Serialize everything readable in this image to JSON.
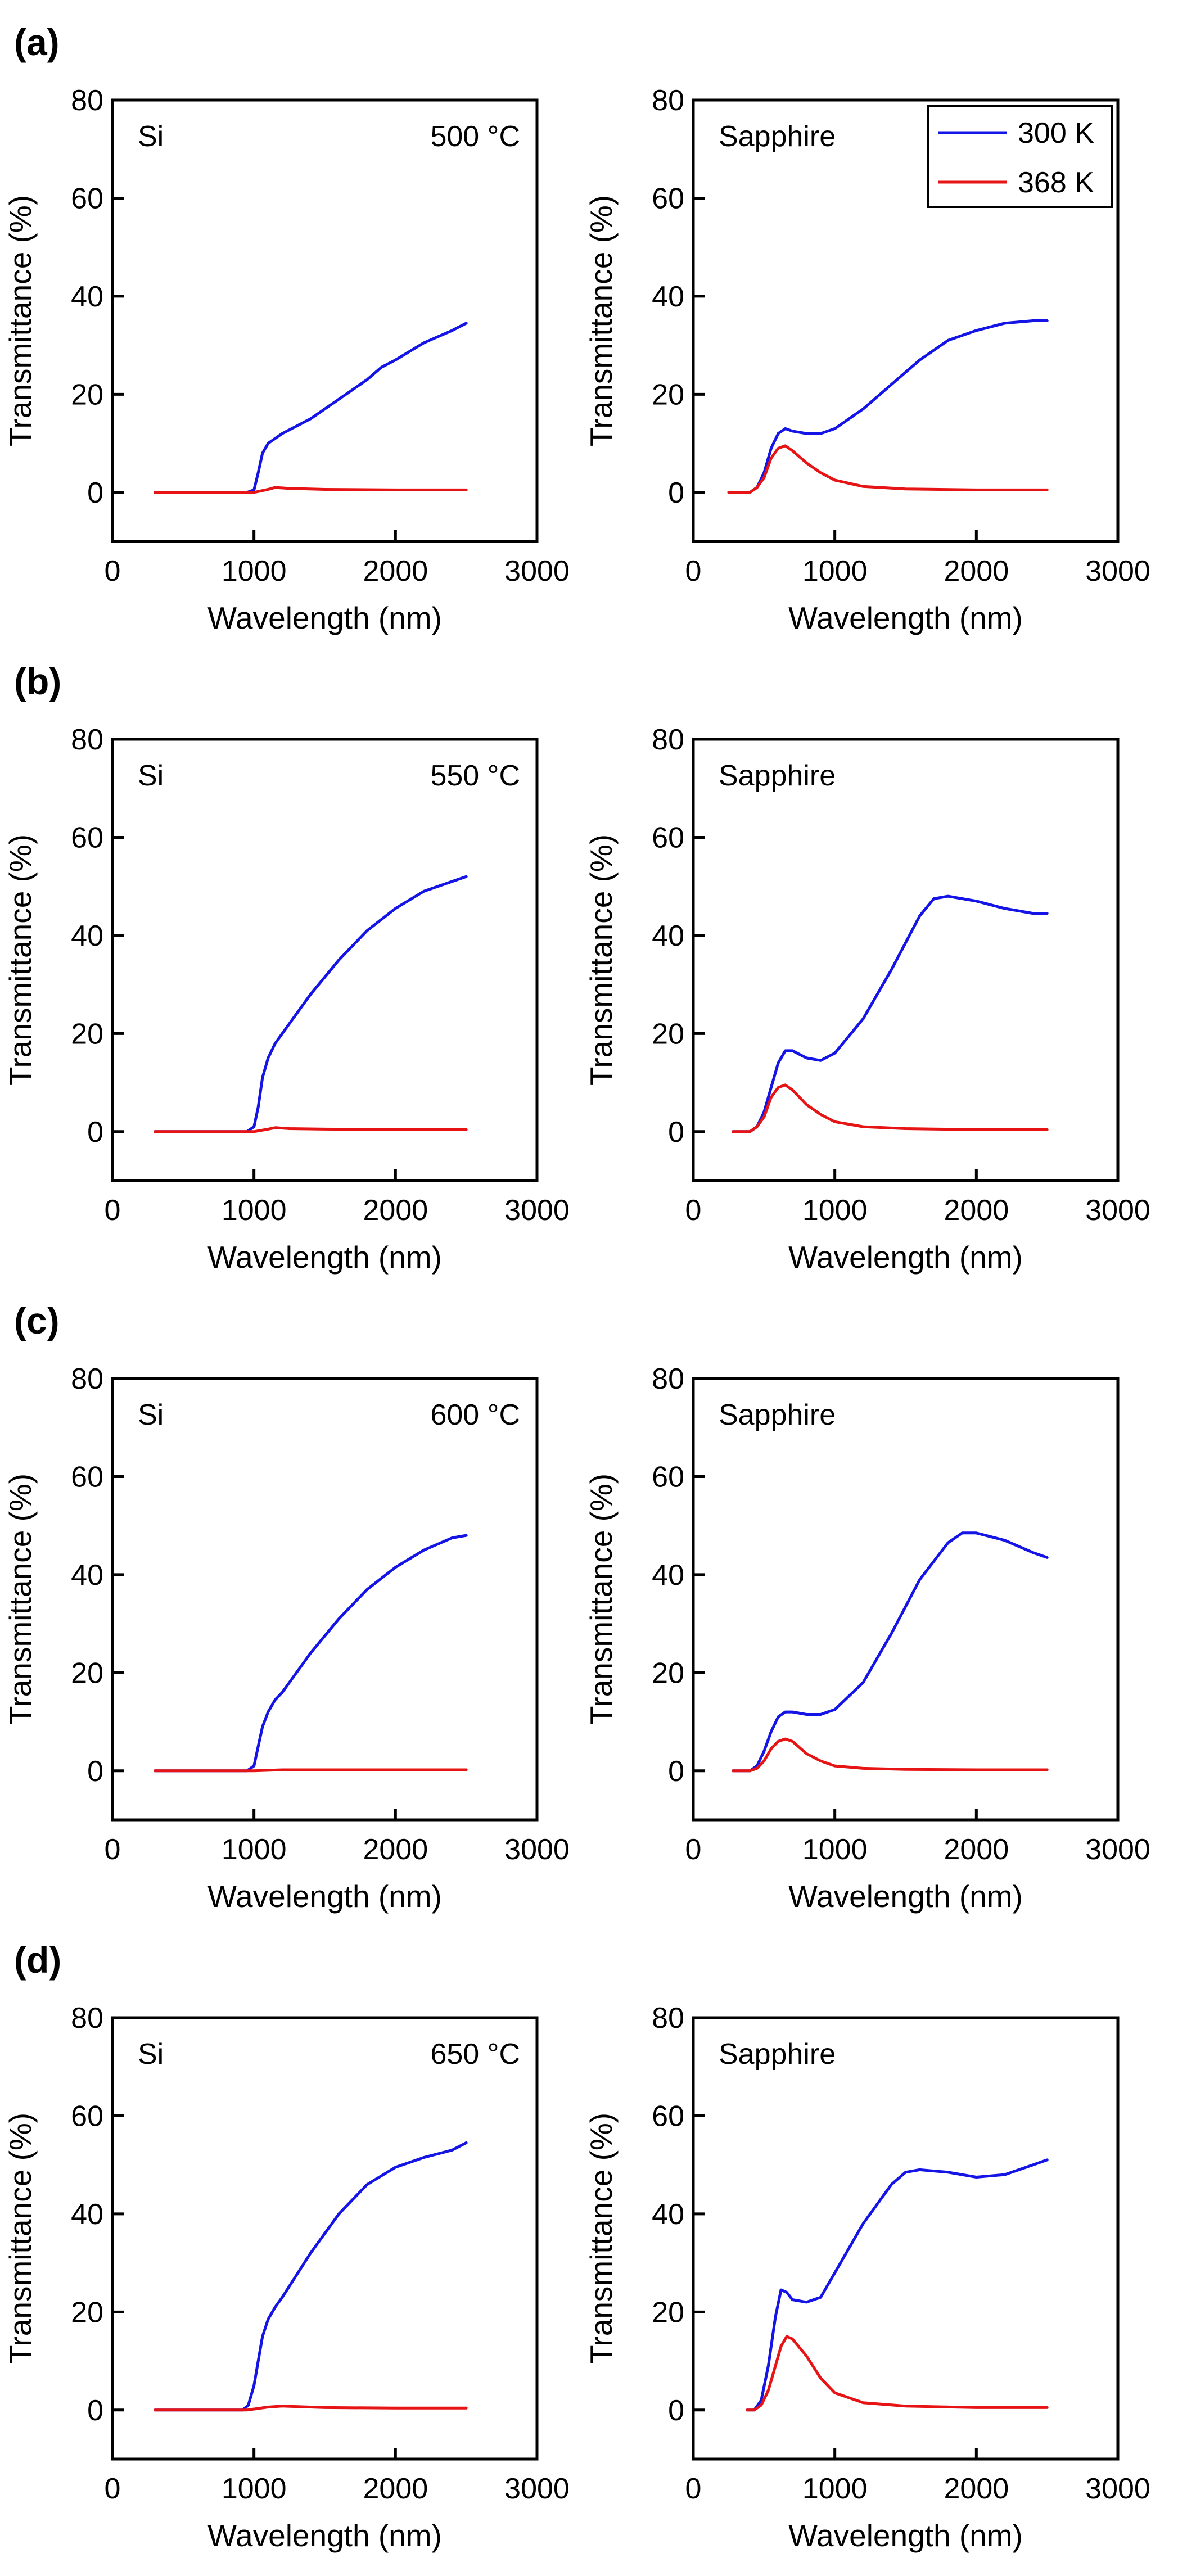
{
  "colors": {
    "blue": "#1414e6",
    "red": "#e61414",
    "axis": "#000000"
  },
  "legend": [
    {
      "label": "300 K",
      "color": "#1414e6"
    },
    {
      "label": "368 K",
      "color": "#e61414"
    }
  ],
  "chart_data": [
    {
      "type": "line",
      "panel_label": "(a)",
      "corner_label": "Si",
      "annotation": "500 °C",
      "xlabel": "Wavelength (nm)",
      "ylabel": "Transmittance (%)",
      "xlim": [
        0,
        3000
      ],
      "ylim": [
        -10,
        80
      ],
      "xticks": [
        0,
        1000,
        2000,
        3000
      ],
      "yticks": [
        0,
        20,
        40,
        60,
        80
      ],
      "series": [
        {
          "name": "300 K",
          "color": "#1414e6",
          "x": [
            300,
            950,
            1000,
            1030,
            1060,
            1100,
            1150,
            1200,
            1400,
            1600,
            1800,
            1900,
            2000,
            2200,
            2400,
            2500
          ],
          "y": [
            0,
            0,
            0.5,
            4,
            8,
            10,
            11,
            12,
            15,
            19,
            23,
            25.5,
            27,
            30.5,
            33,
            34.5
          ]
        },
        {
          "name": "368 K",
          "color": "#e61414",
          "x": [
            300,
            1000,
            1100,
            1150,
            1250,
            1500,
            2000,
            2500
          ],
          "y": [
            0,
            0,
            0.6,
            1,
            0.8,
            0.6,
            0.5,
            0.5
          ]
        }
      ]
    },
    {
      "type": "line",
      "corner_label": "Sapphire",
      "xlabel": "Wavelength (nm)",
      "ylabel": "Transmittance (%)",
      "xlim": [
        0,
        3000
      ],
      "ylim": [
        -10,
        80
      ],
      "xticks": [
        0,
        1000,
        2000,
        3000
      ],
      "yticks": [
        0,
        20,
        40,
        60,
        80
      ],
      "legend_position": "top-right",
      "series": [
        {
          "name": "300 K",
          "color": "#1414e6",
          "x": [
            250,
            400,
            450,
            500,
            550,
            600,
            650,
            700,
            800,
            900,
            1000,
            1200,
            1400,
            1600,
            1800,
            2000,
            2200,
            2400,
            2500
          ],
          "y": [
            0,
            0,
            1,
            4,
            9,
            12,
            13,
            12.5,
            12,
            12,
            13,
            17,
            22,
            27,
            31,
            33,
            34.5,
            35,
            35
          ]
        },
        {
          "name": "368 K",
          "color": "#e61414",
          "x": [
            250,
            400,
            450,
            500,
            550,
            600,
            650,
            700,
            800,
            900,
            1000,
            1200,
            1500,
            2000,
            2500
          ],
          "y": [
            0,
            0,
            1,
            3,
            7,
            9,
            9.5,
            8.5,
            6,
            4,
            2.5,
            1.2,
            0.7,
            0.5,
            0.5
          ]
        }
      ]
    },
    {
      "type": "line",
      "panel_label": "(b)",
      "corner_label": "Si",
      "annotation": "550 °C",
      "xlabel": "Wavelength (nm)",
      "ylabel": "Transmittance (%)",
      "xlim": [
        0,
        3000
      ],
      "ylim": [
        -10,
        80
      ],
      "xticks": [
        0,
        1000,
        2000,
        3000
      ],
      "yticks": [
        0,
        20,
        40,
        60,
        80
      ],
      "series": [
        {
          "name": "300 K",
          "color": "#1414e6",
          "x": [
            300,
            950,
            1000,
            1030,
            1060,
            1100,
            1150,
            1200,
            1400,
            1600,
            1800,
            2000,
            2200,
            2400,
            2500
          ],
          "y": [
            0,
            0,
            1,
            5,
            11,
            15,
            18,
            20,
            28,
            35,
            41,
            45.5,
            49,
            51,
            52
          ]
        },
        {
          "name": "368 K",
          "color": "#e61414",
          "x": [
            300,
            1000,
            1100,
            1150,
            1250,
            1500,
            2000,
            2500
          ],
          "y": [
            0,
            0,
            0.5,
            0.8,
            0.6,
            0.5,
            0.4,
            0.4
          ]
        }
      ]
    },
    {
      "type": "line",
      "corner_label": "Sapphire",
      "xlabel": "Wavelength (nm)",
      "ylabel": "Transmittance (%)",
      "xlim": [
        0,
        3000
      ],
      "ylim": [
        -10,
        80
      ],
      "xticks": [
        0,
        1000,
        2000,
        3000
      ],
      "yticks": [
        0,
        20,
        40,
        60,
        80
      ],
      "series": [
        {
          "name": "300 K",
          "color": "#1414e6",
          "x": [
            280,
            400,
            450,
            500,
            550,
            600,
            650,
            700,
            800,
            900,
            1000,
            1200,
            1400,
            1600,
            1700,
            1800,
            2000,
            2200,
            2400,
            2500
          ],
          "y": [
            0,
            0,
            1,
            4,
            9,
            14,
            16.5,
            16.5,
            15,
            14.5,
            16,
            23,
            33,
            44,
            47.5,
            48,
            47,
            45.5,
            44.5,
            44.5
          ]
        },
        {
          "name": "368 K",
          "color": "#e61414",
          "x": [
            280,
            400,
            450,
            500,
            550,
            600,
            650,
            700,
            800,
            900,
            1000,
            1200,
            1500,
            2000,
            2500
          ],
          "y": [
            0,
            0,
            1,
            3,
            7,
            9,
            9.5,
            8.5,
            5.5,
            3.5,
            2,
            1,
            0.6,
            0.4,
            0.4
          ]
        }
      ]
    },
    {
      "type": "line",
      "panel_label": "(c)",
      "corner_label": "Si",
      "annotation": "600 °C",
      "xlabel": "Wavelength (nm)",
      "ylabel": "Transmittance (%)",
      "xlim": [
        0,
        3000
      ],
      "ylim": [
        -10,
        80
      ],
      "xticks": [
        0,
        1000,
        2000,
        3000
      ],
      "yticks": [
        0,
        20,
        40,
        60,
        80
      ],
      "series": [
        {
          "name": "300 K",
          "color": "#1414e6",
          "x": [
            300,
            950,
            1000,
            1030,
            1060,
            1100,
            1150,
            1200,
            1400,
            1600,
            1800,
            2000,
            2200,
            2400,
            2500
          ],
          "y": [
            0,
            0,
            1,
            5,
            9,
            12,
            14.5,
            16,
            24,
            31,
            37,
            41.5,
            45,
            47.5,
            48
          ]
        },
        {
          "name": "368 K",
          "color": "#e61414",
          "x": [
            300,
            1000,
            1200,
            1500,
            2000,
            2500
          ],
          "y": [
            0,
            0,
            0.2,
            0.2,
            0.2,
            0.2
          ]
        }
      ]
    },
    {
      "type": "line",
      "corner_label": "Sapphire",
      "xlabel": "Wavelength (nm)",
      "ylabel": "Transmittance (%)",
      "xlim": [
        0,
        3000
      ],
      "ylim": [
        -10,
        80
      ],
      "xticks": [
        0,
        1000,
        2000,
        3000
      ],
      "yticks": [
        0,
        20,
        40,
        60,
        80
      ],
      "series": [
        {
          "name": "300 K",
          "color": "#1414e6",
          "x": [
            280,
            400,
            450,
            500,
            550,
            600,
            650,
            700,
            800,
            900,
            1000,
            1200,
            1400,
            1600,
            1800,
            1900,
            2000,
            2200,
            2400,
            2500
          ],
          "y": [
            0,
            0,
            1,
            4,
            8,
            11,
            12,
            12,
            11.5,
            11.5,
            12.5,
            18,
            28,
            39,
            46.5,
            48.5,
            48.5,
            47,
            44.5,
            43.5
          ]
        },
        {
          "name": "368 K",
          "color": "#e61414",
          "x": [
            280,
            400,
            450,
            500,
            550,
            600,
            650,
            700,
            800,
            900,
            1000,
            1200,
            1500,
            2000,
            2500
          ],
          "y": [
            0,
            0,
            0.5,
            2,
            4.5,
            6,
            6.5,
            6,
            3.5,
            2,
            1,
            0.5,
            0.3,
            0.2,
            0.2
          ]
        }
      ]
    },
    {
      "type": "line",
      "panel_label": "(d)",
      "corner_label": "Si",
      "annotation": "650 °C",
      "xlabel": "Wavelength (nm)",
      "ylabel": "Transmittance (%)",
      "xlim": [
        0,
        3000
      ],
      "ylim": [
        -10,
        80
      ],
      "xticks": [
        0,
        1000,
        2000,
        3000
      ],
      "yticks": [
        0,
        20,
        40,
        60,
        80
      ],
      "series": [
        {
          "name": "300 K",
          "color": "#1414e6",
          "x": [
            300,
            920,
            960,
            1000,
            1030,
            1060,
            1100,
            1150,
            1200,
            1400,
            1600,
            1800,
            2000,
            2200,
            2400,
            2500
          ],
          "y": [
            0,
            0,
            1,
            5,
            10,
            15,
            18.5,
            21,
            23,
            32,
            40,
            46,
            49.5,
            51.5,
            53,
            54.5
          ]
        },
        {
          "name": "368 K",
          "color": "#e61414",
          "x": [
            300,
            950,
            1100,
            1200,
            1500,
            2000,
            2500
          ],
          "y": [
            0,
            0,
            0.6,
            0.8,
            0.5,
            0.4,
            0.4
          ]
        }
      ]
    },
    {
      "type": "line",
      "corner_label": "Sapphire",
      "xlabel": "Wavelength (nm)",
      "ylabel": "Transmittance (%)",
      "xlim": [
        0,
        3000
      ],
      "ylim": [
        -10,
        80
      ],
      "xticks": [
        0,
        1000,
        2000,
        3000
      ],
      "yticks": [
        0,
        20,
        40,
        60,
        80
      ],
      "series": [
        {
          "name": "300 K",
          "color": "#1414e6",
          "x": [
            380,
            430,
            480,
            530,
            580,
            620,
            660,
            700,
            800,
            900,
            1000,
            1200,
            1400,
            1500,
            1600,
            1800,
            2000,
            2200,
            2400,
            2500
          ],
          "y": [
            0,
            0,
            2,
            9,
            19,
            24.5,
            24,
            22.5,
            22,
            23,
            28,
            38,
            46,
            48.5,
            49,
            48.5,
            47.5,
            48,
            50,
            51
          ]
        },
        {
          "name": "368 K",
          "color": "#e61414",
          "x": [
            380,
            430,
            480,
            530,
            580,
            620,
            660,
            700,
            800,
            900,
            1000,
            1200,
            1500,
            2000,
            2500
          ],
          "y": [
            0,
            0,
            1,
            4,
            9,
            13,
            15,
            14.5,
            11,
            6.5,
            3.5,
            1.5,
            0.8,
            0.5,
            0.5
          ]
        }
      ]
    }
  ]
}
